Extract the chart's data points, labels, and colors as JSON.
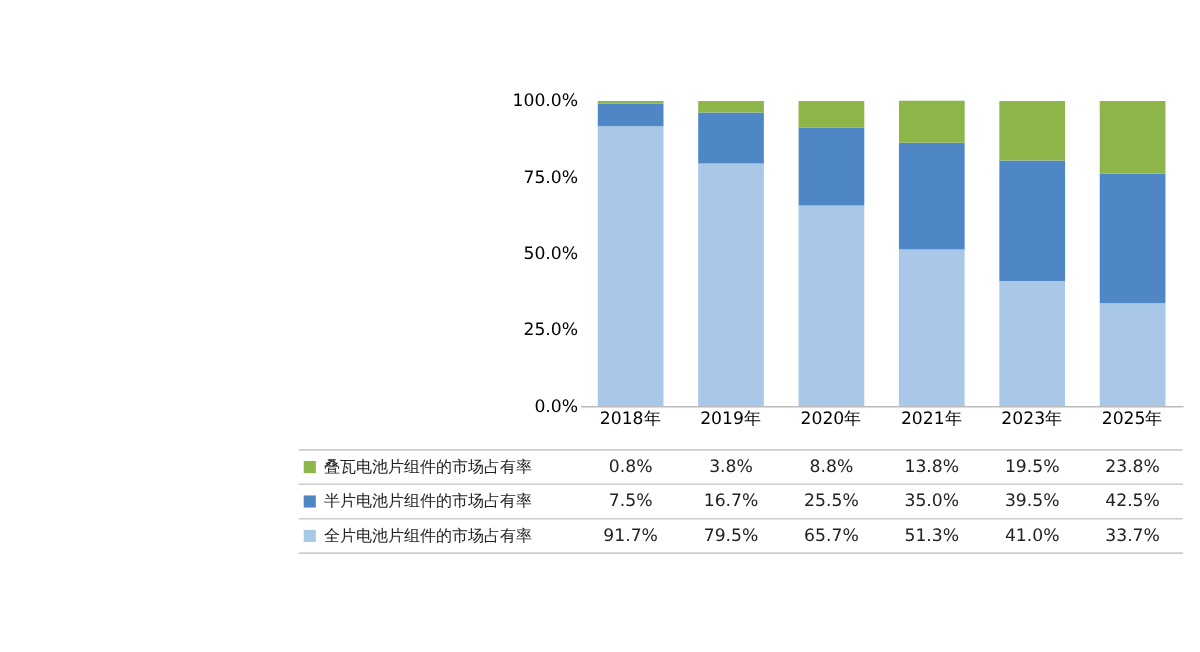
{
  "chart_data": {
    "type": "bar",
    "stacked": true,
    "categories": [
      "2018年",
      "2019年",
      "2020年",
      "2021年",
      "2023年",
      "2025年"
    ],
    "series": [
      {
        "name": "全片电池片组件的市场占有率",
        "color": "#a9c8e8",
        "values": [
          91.7,
          79.5,
          65.7,
          51.3,
          41.0,
          33.7
        ],
        "value_labels": [
          "91.7%",
          "79.5%",
          "65.7%",
          "51.3%",
          "41.0%",
          "33.7%"
        ]
      },
      {
        "name": "半片电池片组件的市场占有率",
        "color": "#4f86c6",
        "values": [
          7.5,
          16.7,
          25.5,
          35.0,
          39.5,
          42.5
        ],
        "value_labels": [
          "7.5%",
          "16.7%",
          "25.5%",
          "35.0%",
          "39.5%",
          "42.5%"
        ]
      },
      {
        "name": "叠瓦电池片组件的市场占有率",
        "color": "#8db54a",
        "values": [
          0.8,
          3.8,
          8.8,
          13.8,
          19.5,
          23.8
        ],
        "value_labels": [
          "0.8%",
          "3.8%",
          "8.8%",
          "13.8%",
          "19.5%",
          "23.8%"
        ]
      }
    ],
    "ylim": [
      0,
      100
    ],
    "yticks": [
      {
        "value": 0,
        "label": "0.0%"
      },
      {
        "value": 25,
        "label": "25.0%"
      },
      {
        "value": 50,
        "label": "50.0%"
      },
      {
        "value": 75,
        "label": "75.0%"
      },
      {
        "value": 100,
        "label": "100.0%"
      }
    ],
    "grid": false,
    "legend": "bottom left"
  }
}
